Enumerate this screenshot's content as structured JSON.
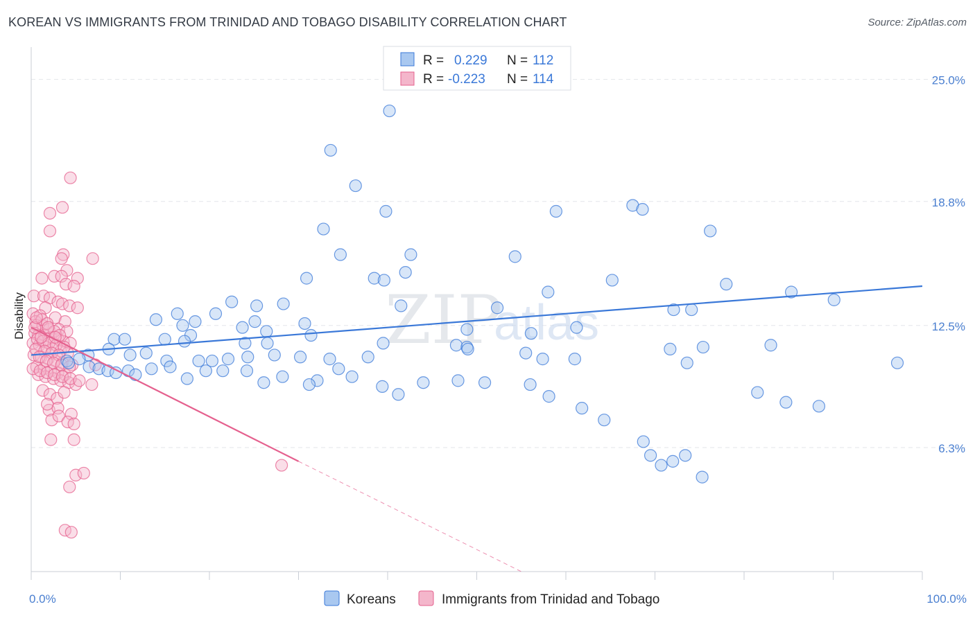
{
  "header": {
    "title": "KOREAN VS IMMIGRANTS FROM TRINIDAD AND TOBAGO DISABILITY CORRELATION CHART",
    "source": "Source: ZipAtlas.com"
  },
  "watermark": {
    "part1": "ZIP",
    "part2": "atlas"
  },
  "colors": {
    "koreans": "#3a78d8",
    "koreans_fill": "#a9c8f0",
    "trinidad": "#e5608e",
    "trinidad_fill": "#f4b6cb",
    "tick": "#4a7fd0",
    "grid": "#e3e6ea"
  },
  "legend_top": {
    "rows": [
      {
        "r_label": "R =",
        "r_value": "0.229",
        "n_label": "N =",
        "n_value": "112"
      },
      {
        "r_label": "R =",
        "r_value": "-0.223",
        "n_label": "N =",
        "n_value": "114"
      }
    ]
  },
  "legend_bottom": {
    "koreans": "Koreans",
    "trinidad": "Immigrants from Trinidad and Tobago"
  },
  "chart_data": {
    "type": "scatter",
    "title": "KOREAN VS IMMIGRANTS FROM TRINIDAD AND TOBAGO DISABILITY CORRELATION CHART",
    "ylabel": "Disability",
    "xlabel": "",
    "xlim": [
      0,
      100
    ],
    "ylim": [
      0,
      26.5
    ],
    "x_tick_labels": [
      "0.0%",
      "100.0%"
    ],
    "y_ticks": [
      6.3,
      12.5,
      18.8,
      25.0
    ],
    "y_tick_labels": [
      "6.3%",
      "12.5%",
      "18.8%",
      "25.0%"
    ],
    "grid": "horizontal dashed",
    "legend_placement": "top-center",
    "series": [
      {
        "name": "Koreans",
        "r": 0.229,
        "n": 112,
        "trend": {
          "x": [
            0,
            100
          ],
          "y": [
            11.0,
            14.5
          ]
        },
        "points": [
          [
            40.2,
            23.4
          ],
          [
            33.6,
            21.4
          ],
          [
            36.4,
            19.6
          ],
          [
            58.9,
            18.3
          ],
          [
            58.0,
            14.2
          ],
          [
            67.5,
            18.6
          ],
          [
            39.8,
            18.3
          ],
          [
            68.6,
            18.4
          ],
          [
            76.2,
            17.3
          ],
          [
            32.8,
            17.4
          ],
          [
            34.7,
            16.1
          ],
          [
            42.6,
            16.1
          ],
          [
            54.3,
            16.0
          ],
          [
            42.0,
            15.2
          ],
          [
            30.9,
            14.9
          ],
          [
            38.5,
            14.9
          ],
          [
            39.6,
            14.8
          ],
          [
            65.2,
            14.8
          ],
          [
            78.0,
            14.6
          ],
          [
            85.3,
            14.2
          ],
          [
            90.1,
            13.8
          ],
          [
            22.5,
            13.7
          ],
          [
            28.3,
            13.6
          ],
          [
            25.3,
            13.5
          ],
          [
            41.5,
            13.5
          ],
          [
            52.3,
            13.4
          ],
          [
            74.1,
            13.3
          ],
          [
            72.1,
            13.3
          ],
          [
            16.4,
            13.1
          ],
          [
            20.7,
            13.1
          ],
          [
            14.0,
            12.8
          ],
          [
            18.4,
            12.7
          ],
          [
            25.1,
            12.7
          ],
          [
            30.7,
            12.6
          ],
          [
            17.0,
            12.5
          ],
          [
            23.7,
            12.4
          ],
          [
            26.4,
            12.2
          ],
          [
            48.9,
            12.3
          ],
          [
            56.1,
            12.1
          ],
          [
            61.2,
            12.4
          ],
          [
            31.4,
            12.0
          ],
          [
            17.9,
            12.0
          ],
          [
            9.3,
            11.8
          ],
          [
            10.5,
            11.8
          ],
          [
            15.0,
            11.8
          ],
          [
            17.2,
            11.7
          ],
          [
            24.0,
            11.6
          ],
          [
            26.5,
            11.6
          ],
          [
            39.5,
            11.6
          ],
          [
            47.7,
            11.5
          ],
          [
            48.9,
            11.4
          ],
          [
            49.0,
            11.3
          ],
          [
            71.7,
            11.3
          ],
          [
            75.4,
            11.4
          ],
          [
            83.0,
            11.5
          ],
          [
            8.7,
            11.3
          ],
          [
            12.9,
            11.1
          ],
          [
            11.1,
            11.0
          ],
          [
            6.4,
            11.0
          ],
          [
            5.4,
            10.8
          ],
          [
            4.0,
            10.7
          ],
          [
            15.2,
            10.7
          ],
          [
            18.8,
            10.7
          ],
          [
            20.3,
            10.7
          ],
          [
            22.1,
            10.8
          ],
          [
            24.3,
            10.9
          ],
          [
            27.3,
            11.0
          ],
          [
            30.2,
            10.9
          ],
          [
            33.5,
            10.8
          ],
          [
            37.8,
            10.9
          ],
          [
            55.5,
            11.1
          ],
          [
            57.4,
            10.8
          ],
          [
            61.0,
            10.8
          ],
          [
            73.6,
            10.6
          ],
          [
            4.2,
            10.6
          ],
          [
            6.5,
            10.4
          ],
          [
            7.6,
            10.3
          ],
          [
            8.6,
            10.2
          ],
          [
            9.5,
            10.1
          ],
          [
            10.9,
            10.2
          ],
          [
            11.7,
            10.0
          ],
          [
            13.5,
            10.3
          ],
          [
            15.6,
            10.4
          ],
          [
            17.5,
            9.8
          ],
          [
            19.6,
            10.2
          ],
          [
            21.5,
            10.2
          ],
          [
            24.2,
            10.2
          ],
          [
            26.1,
            9.6
          ],
          [
            28.2,
            9.9
          ],
          [
            32.1,
            9.7
          ],
          [
            34.5,
            10.3
          ],
          [
            31.2,
            9.5
          ],
          [
            36.0,
            9.9
          ],
          [
            39.4,
            9.4
          ],
          [
            41.2,
            9.0
          ],
          [
            44.0,
            9.6
          ],
          [
            47.9,
            9.7
          ],
          [
            50.9,
            9.6
          ],
          [
            56.0,
            9.5
          ],
          [
            58.1,
            8.9
          ],
          [
            61.8,
            8.3
          ],
          [
            64.3,
            7.7
          ],
          [
            68.7,
            6.6
          ],
          [
            69.5,
            5.9
          ],
          [
            70.7,
            5.4
          ],
          [
            72.0,
            5.6
          ],
          [
            73.4,
            5.9
          ],
          [
            75.3,
            4.8
          ],
          [
            81.5,
            9.1
          ],
          [
            84.7,
            8.6
          ],
          [
            88.4,
            8.4
          ],
          [
            97.2,
            10.6
          ]
        ]
      },
      {
        "name": "Immigrants from Trinidad and Tobago",
        "r": -0.223,
        "n": 114,
        "trend": {
          "x": [
            0,
            30
          ],
          "y": [
            12.4,
            5.6
          ]
        },
        "trend_extension": {
          "x": [
            30,
            55
          ],
          "y": [
            5.6,
            0
          ]
        },
        "points": [
          [
            4.4,
            20.0
          ],
          [
            3.5,
            18.5
          ],
          [
            2.1,
            18.2
          ],
          [
            2.1,
            17.3
          ],
          [
            3.6,
            16.1
          ],
          [
            3.4,
            15.9
          ],
          [
            6.9,
            15.9
          ],
          [
            4.0,
            15.3
          ],
          [
            2.6,
            15.0
          ],
          [
            3.4,
            15.0
          ],
          [
            5.2,
            14.9
          ],
          [
            1.2,
            14.9
          ],
          [
            3.9,
            14.6
          ],
          [
            4.8,
            14.5
          ],
          [
            0.3,
            14.0
          ],
          [
            1.4,
            14.0
          ],
          [
            2.1,
            13.9
          ],
          [
            3.0,
            13.7
          ],
          [
            3.5,
            13.6
          ],
          [
            4.3,
            13.5
          ],
          [
            5.2,
            13.4
          ],
          [
            1.6,
            13.4
          ],
          [
            0.2,
            13.1
          ],
          [
            1.0,
            13.0
          ],
          [
            2.7,
            12.9
          ],
          [
            3.8,
            12.7
          ],
          [
            0.5,
            12.7
          ],
          [
            0.6,
            12.5
          ],
          [
            1.3,
            12.5
          ],
          [
            2.0,
            12.3
          ],
          [
            3.1,
            12.3
          ],
          [
            4.0,
            12.2
          ],
          [
            0.4,
            12.1
          ],
          [
            0.8,
            12.0
          ],
          [
            1.5,
            12.0
          ],
          [
            2.2,
            11.9
          ],
          [
            3.0,
            11.8
          ],
          [
            3.6,
            11.7
          ],
          [
            4.4,
            11.6
          ],
          [
            0.2,
            11.6
          ],
          [
            0.9,
            11.5
          ],
          [
            1.7,
            11.4
          ],
          [
            2.4,
            11.3
          ],
          [
            3.3,
            11.2
          ],
          [
            4.1,
            11.1
          ],
          [
            0.3,
            11.0
          ],
          [
            1.1,
            10.9
          ],
          [
            1.9,
            10.8
          ],
          [
            2.7,
            10.7
          ],
          [
            3.5,
            10.6
          ],
          [
            4.6,
            10.5
          ],
          [
            0.6,
            10.4
          ],
          [
            1.4,
            10.3
          ],
          [
            2.2,
            10.2
          ],
          [
            3.0,
            10.1
          ],
          [
            3.8,
            10.0
          ],
          [
            0.8,
            10.0
          ],
          [
            1.6,
            9.9
          ],
          [
            2.5,
            9.8
          ],
          [
            3.3,
            9.7
          ],
          [
            4.2,
            9.6
          ],
          [
            5.0,
            9.5
          ],
          [
            6.8,
            9.5
          ],
          [
            7.2,
            10.5
          ],
          [
            1.2,
            12.8
          ],
          [
            1.8,
            12.6
          ],
          [
            0.4,
            12.4
          ],
          [
            2.6,
            12.2
          ],
          [
            3.2,
            12.0
          ],
          [
            0.7,
            11.8
          ],
          [
            1.3,
            11.7
          ],
          [
            2.0,
            11.6
          ],
          [
            2.8,
            11.5
          ],
          [
            3.7,
            11.4
          ],
          [
            0.5,
            11.3
          ],
          [
            1.5,
            11.2
          ],
          [
            2.3,
            11.1
          ],
          [
            3.1,
            11.0
          ],
          [
            0.9,
            10.9
          ],
          [
            1.7,
            10.7
          ],
          [
            2.5,
            10.6
          ],
          [
            3.4,
            10.5
          ],
          [
            4.3,
            10.4
          ],
          [
            0.2,
            10.3
          ],
          [
            1.0,
            10.2
          ],
          [
            1.8,
            10.1
          ],
          [
            2.6,
            10.0
          ],
          [
            3.5,
            9.9
          ],
          [
            4.4,
            9.8
          ],
          [
            5.4,
            9.7
          ],
          [
            1.3,
            9.2
          ],
          [
            2.1,
            9.0
          ],
          [
            2.9,
            8.8
          ],
          [
            3.7,
            9.1
          ],
          [
            2.0,
            8.2
          ],
          [
            3.0,
            8.3
          ],
          [
            4.5,
            8.0
          ],
          [
            1.8,
            8.5
          ],
          [
            2.3,
            7.7
          ],
          [
            3.1,
            7.9
          ],
          [
            4.1,
            7.6
          ],
          [
            4.8,
            7.5
          ],
          [
            2.2,
            6.7
          ],
          [
            4.8,
            6.7
          ],
          [
            5.0,
            4.9
          ],
          [
            4.3,
            4.3
          ],
          [
            5.9,
            5.0
          ],
          [
            28.1,
            5.4
          ],
          [
            3.8,
            2.1
          ],
          [
            4.5,
            2.0
          ],
          [
            1.1,
            11.9
          ],
          [
            0.6,
            12.9
          ],
          [
            1.9,
            12.4
          ],
          [
            2.7,
            11.9
          ]
        ]
      }
    ]
  }
}
